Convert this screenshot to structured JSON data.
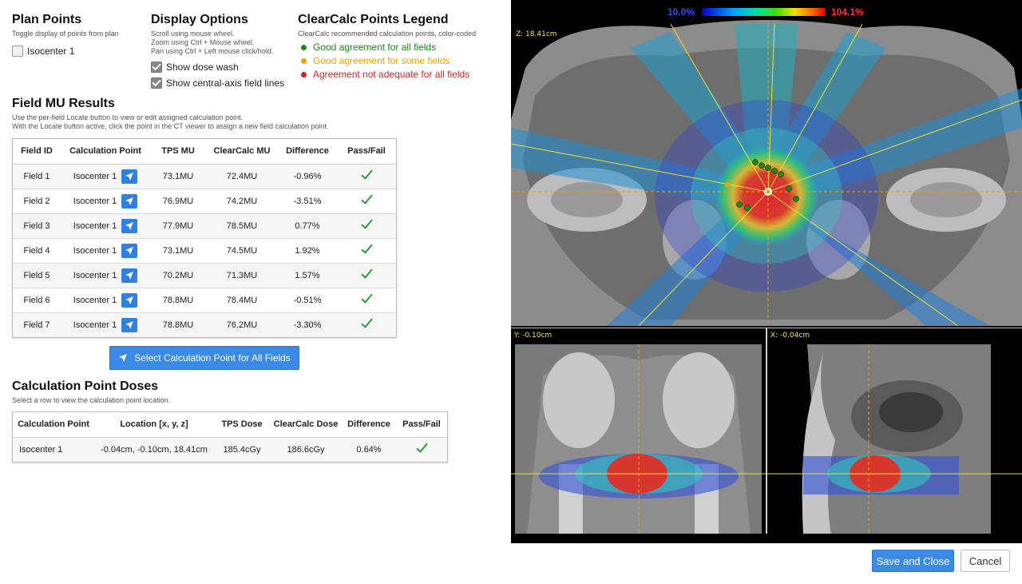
{
  "plan_points": {
    "title": "Plan Points",
    "subtitle": "Toggle display of points from plan",
    "items": [
      {
        "label": "Isocenter 1",
        "checked": false
      }
    ]
  },
  "display_options": {
    "title": "Display Options",
    "hints": [
      "Scroll using mouse wheel.",
      "Zoom using Ctrl + Mouse wheel.",
      "Pan using Ctrl + Left mouse click/hold."
    ],
    "show_dose_wash": {
      "label": "Show dose wash",
      "checked": true
    },
    "show_field_lines": {
      "label": "Show central-axis field lines",
      "checked": true
    }
  },
  "legend": {
    "title": "ClearCalc Points Legend",
    "subtitle": "ClearCalc recommended calculation points, color-coded",
    "items": [
      {
        "label": "Good agreement for all fields",
        "color": "#1a8a1a"
      },
      {
        "label": "Good agreement for some fields",
        "color": "#f0a000"
      },
      {
        "label": "Agreement not adequate for all fields",
        "color": "#e02020"
      }
    ]
  },
  "field_mu": {
    "title": "Field MU Results",
    "desc1": "Use the per-field Locate button to view or edit assigned calculation point.",
    "desc2": "With the Locate button active, click the point in the CT viewer to assign a new field calculation point.",
    "headers": [
      "Field ID",
      "Calculation Point",
      "TPS MU",
      "ClearCalc MU",
      "Difference",
      "Pass/Fail"
    ],
    "rows": [
      {
        "id": "Field 1",
        "point": "Isocenter 1",
        "tps": "73.1MU",
        "cc": "72.4MU",
        "diff": "-0.96%"
      },
      {
        "id": "Field 2",
        "point": "Isocenter 1",
        "tps": "76.9MU",
        "cc": "74.2MU",
        "diff": "-3.51%"
      },
      {
        "id": "Field 3",
        "point": "Isocenter 1",
        "tps": "77.9MU",
        "cc": "78.5MU",
        "diff": "0.77%"
      },
      {
        "id": "Field 4",
        "point": "Isocenter 1",
        "tps": "73.1MU",
        "cc": "74.5MU",
        "diff": "1.92%"
      },
      {
        "id": "Field 5",
        "point": "Isocenter 1",
        "tps": "70.2MU",
        "cc": "71.3MU",
        "diff": "1.57%"
      },
      {
        "id": "Field 6",
        "point": "Isocenter 1",
        "tps": "78.8MU",
        "cc": "78.4MU",
        "diff": "-0.51%"
      },
      {
        "id": "Field 7",
        "point": "Isocenter 1",
        "tps": "78.8MU",
        "cc": "76.2MU",
        "diff": "-3.30%"
      }
    ],
    "select_all_label": "Select Calculation Point for All Fields"
  },
  "calc_doses": {
    "title": "Calculation Point Doses",
    "subtitle": "Select a row to view the calculation point location.",
    "headers": [
      "Calculation Point",
      "Location [x, y, z]",
      "TPS Dose",
      "ClearCalc Dose",
      "Difference",
      "Pass/Fail"
    ],
    "rows": [
      {
        "point": "Isocenter 1",
        "location": "-0.04cm, -0.10cm, 18.41cm",
        "tps": "185.4cGy",
        "cc": "186.6cGy",
        "diff": "0.64%"
      }
    ]
  },
  "viewer": {
    "colorbar_min": "10.0%",
    "colorbar_max": "104.1%",
    "axial_label": "Z: 18.41cm",
    "coronal_label": "Y: -0.10cm",
    "sagittal_label": "X: -0.04cm"
  },
  "footer": {
    "save_label": "Save and Close",
    "cancel_label": "Cancel"
  }
}
